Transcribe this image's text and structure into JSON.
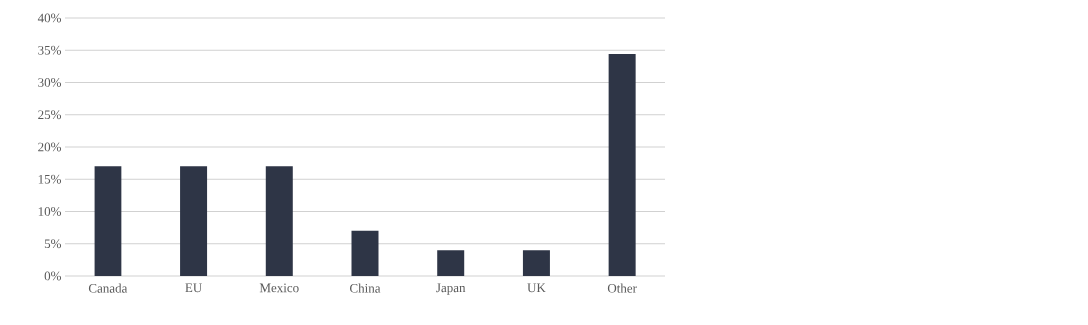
{
  "chart_data": {
    "type": "bar",
    "categories": [
      "Canada",
      "EU",
      "Mexico",
      "China",
      "Japan",
      "UK",
      "Other"
    ],
    "values": [
      17,
      17,
      17,
      7,
      4,
      4,
      34.4
    ],
    "color": "#2e3546",
    "ylim": [
      0,
      40
    ],
    "yticks": [
      {
        "value": 0,
        "label": "0%"
      },
      {
        "value": 5,
        "label": "5%"
      },
      {
        "value": 10,
        "label": "10%"
      },
      {
        "value": 15,
        "label": "15%"
      },
      {
        "value": 20,
        "label": "20%"
      },
      {
        "value": 25,
        "label": "25%"
      },
      {
        "value": 30,
        "label": "30%"
      },
      {
        "value": 35,
        "label": "35%"
      },
      {
        "value": 40,
        "label": "40%"
      }
    ],
    "grid": "y"
  }
}
